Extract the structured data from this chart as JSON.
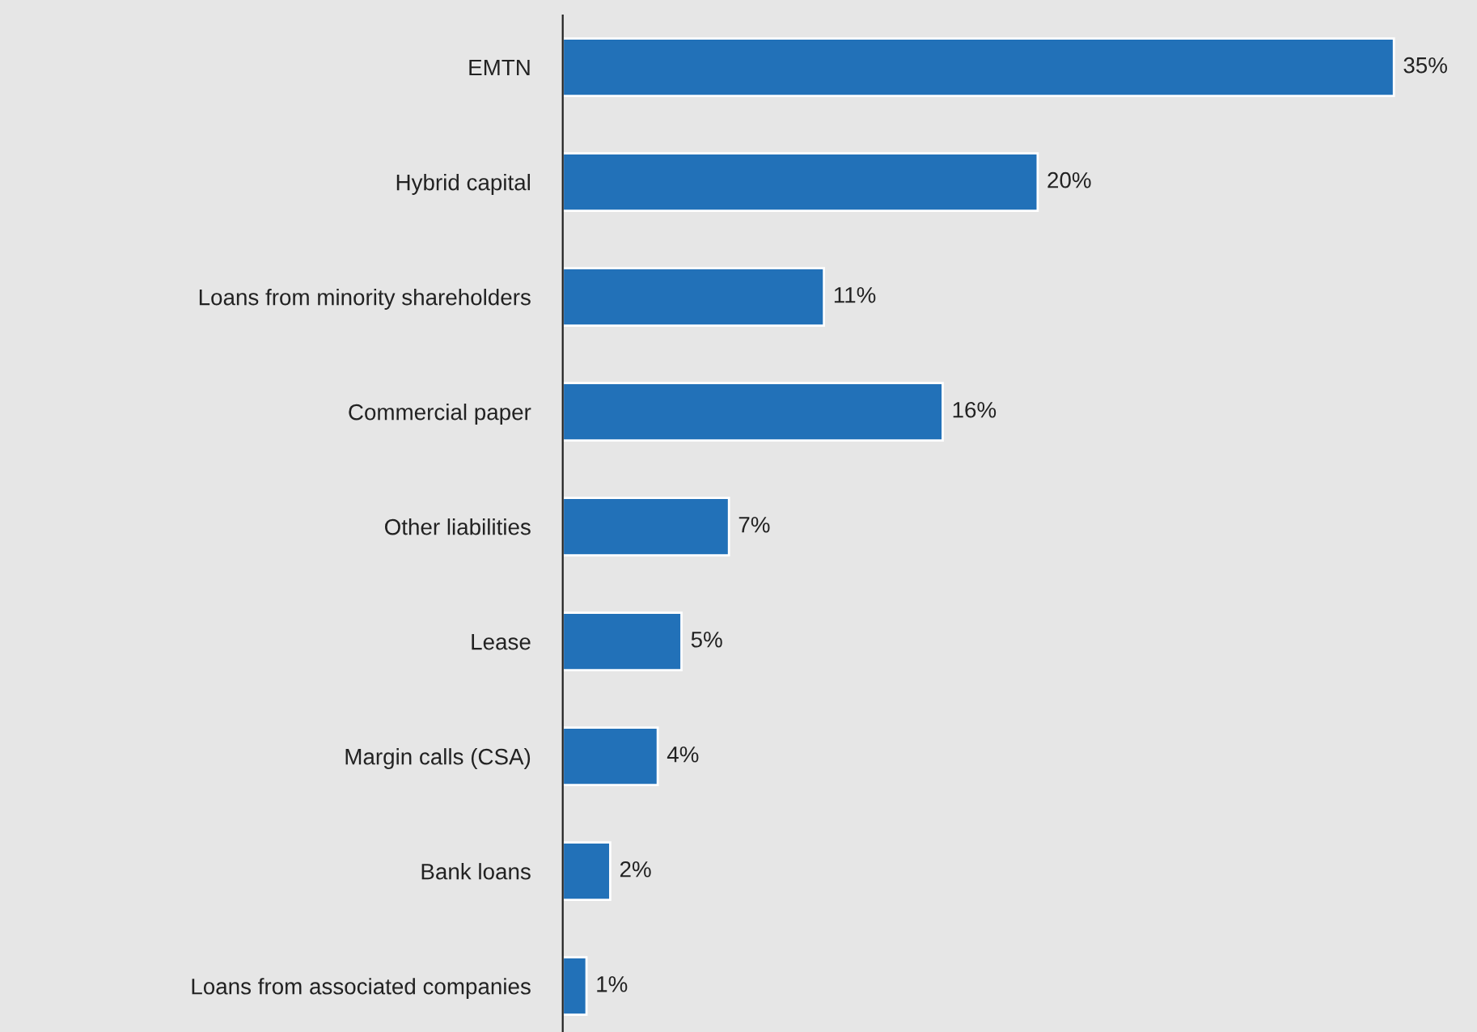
{
  "chart_data": {
    "type": "bar",
    "orientation": "horizontal",
    "categories": [
      "EMTN",
      "Hybrid capital",
      "Loans from minority shareholders",
      "Commercial paper",
      "Other liabilities",
      "Lease",
      "Margin calls (CSA)",
      "Bank loans",
      "Loans from associated companies"
    ],
    "values": [
      35,
      20,
      11,
      16,
      7,
      5,
      4,
      2,
      1
    ],
    "value_labels": [
      "35%",
      "20%",
      "11%",
      "16%",
      "7%",
      "5%",
      "4%",
      "2%",
      "1%"
    ],
    "color": "#2271b8",
    "tick_labels": "y",
    "grid": false,
    "legend": false
  }
}
